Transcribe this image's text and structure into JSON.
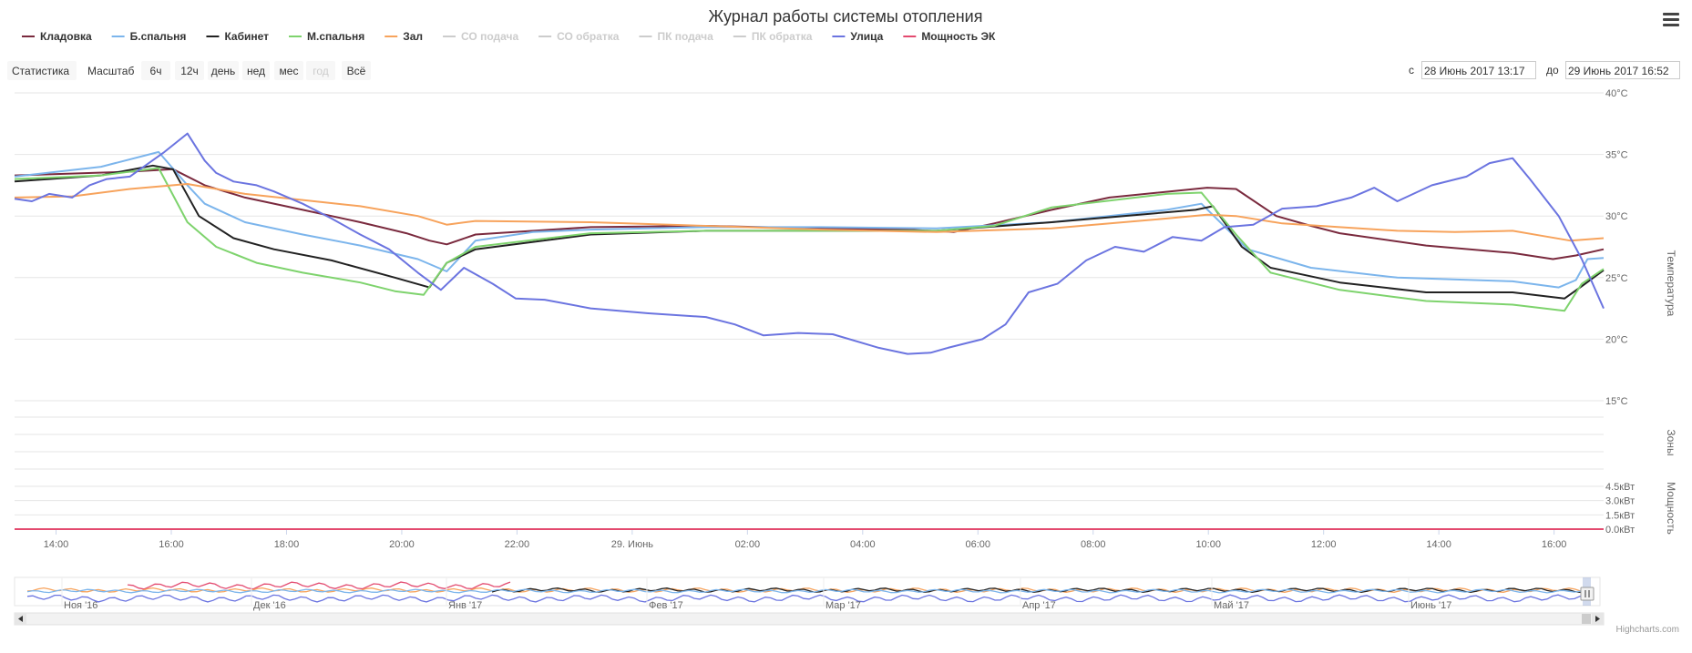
{
  "chart_data": {
    "type": "line",
    "title": "Журнал работы системы отопления",
    "legend_position": "top",
    "grid": true,
    "x": {
      "unit": "hours from 28 Июнь 2017 13:17",
      "range": [
        0,
        27.58
      ],
      "tick_values": [
        0.72,
        2.72,
        4.72,
        6.72,
        8.72,
        10.72,
        12.72,
        14.72,
        16.72,
        18.72,
        20.72,
        22.72,
        24.72,
        26.72
      ],
      "tick_labels": [
        "14:00",
        "16:00",
        "18:00",
        "20:00",
        "22:00",
        "29. Июнь",
        "02:00",
        "04:00",
        "06:00",
        "08:00",
        "10:00",
        "12:00",
        "14:00",
        "16:00"
      ]
    },
    "y_temp": {
      "title": "Температура",
      "range": [
        15,
        40
      ],
      "ticks": [
        15,
        20,
        25,
        30,
        35,
        40
      ],
      "tick_labels": [
        "15°C",
        "20°C",
        "25°C",
        "30°C",
        "35°C",
        "40°C"
      ]
    },
    "y_zones": {
      "title": "Зоны"
    },
    "y_power": {
      "title": "Мощность",
      "range": [
        0,
        4.5
      ],
      "ticks": [
        0,
        1.5,
        3.0,
        4.5
      ],
      "tick_labels": [
        "0.0кВт",
        "1.5кВт",
        "3.0кВт",
        "4.5кВт"
      ]
    },
    "series": [
      {
        "name": "Кладовка",
        "color": "#7a2a3e",
        "visible": true,
        "x": [
          0,
          2,
          2.75,
          3.3,
          4,
          5,
          6,
          6.8,
          7.2,
          7.5,
          8,
          10,
          12,
          14,
          15.5,
          16.3,
          17,
          18,
          19,
          20.7,
          21.2,
          21.9,
          22.5,
          23,
          24.5,
          26,
          26.7,
          27.1,
          27.58
        ],
        "y": [
          33.3,
          33.6,
          33.8,
          32.5,
          31.5,
          30.5,
          29.5,
          28.6,
          28,
          27.7,
          28.5,
          29.1,
          29.2,
          29,
          28.9,
          28.7,
          29.4,
          30.5,
          31.5,
          32.3,
          32.2,
          30,
          29.2,
          28.6,
          27.6,
          27,
          26.5,
          26.8,
          27.3
        ]
      },
      {
        "name": "Б.спальня",
        "color": "#7cb5ec",
        "visible": true,
        "x": [
          0,
          1.5,
          2.5,
          3,
          3.3,
          4,
          5,
          6,
          7,
          7.5,
          8,
          9,
          10,
          12,
          14,
          16,
          18,
          20,
          20.6,
          21.4,
          22.5,
          24,
          26,
          26.8,
          27.1,
          27.3,
          27.58
        ],
        "y": [
          33.2,
          34,
          35.2,
          32.5,
          31,
          29.5,
          28.5,
          27.6,
          26.5,
          25.5,
          28,
          28.7,
          28.9,
          29.1,
          29.1,
          29,
          29.5,
          30.5,
          31,
          27.3,
          25.8,
          25,
          24.7,
          24.2,
          24.8,
          26.5,
          26.6
        ]
      },
      {
        "name": "Кабинет",
        "color": "#222222",
        "visible": true,
        "x": [
          0,
          1.5,
          2.4,
          2.75,
          3.2,
          3.8,
          4.5,
          5.5,
          6.6,
          7.2,
          7.5,
          8,
          10,
          12,
          14,
          16,
          18,
          20.5,
          20.8,
          21.3,
          21.8,
          23,
          24.5,
          26,
          26.9,
          27.2,
          27.58
        ],
        "y": [
          32.8,
          33.3,
          34.1,
          33.8,
          30,
          28.2,
          27.3,
          26.4,
          25,
          24.2,
          26.2,
          27.3,
          28.5,
          28.8,
          28.8,
          28.8,
          29.5,
          30.5,
          30.8,
          27.5,
          25.8,
          24.6,
          23.8,
          23.8,
          23.3,
          24.3,
          25.6
        ]
      },
      {
        "name": "М.спальня",
        "color": "#7ed36d",
        "visible": true,
        "x": [
          0,
          1.5,
          2.5,
          3.0,
          3.5,
          4.2,
          5,
          6,
          6.6,
          7.1,
          7.5,
          8,
          10,
          12,
          14,
          16,
          17,
          18,
          20,
          20.6,
          21.2,
          21.8,
          23,
          24.5,
          26,
          26.9,
          27.2,
          27.58
        ],
        "y": [
          33,
          33.3,
          33.9,
          29.5,
          27.5,
          26.2,
          25.4,
          24.6,
          23.9,
          23.6,
          26.2,
          27.5,
          28.6,
          28.8,
          28.8,
          28.8,
          29.2,
          30.7,
          31.8,
          31.9,
          28.5,
          25.4,
          24,
          23.1,
          22.8,
          22.3,
          24.5,
          25.7
        ]
      },
      {
        "name": "Зал",
        "color": "#f7a35c",
        "visible": true,
        "x": [
          0,
          1,
          2,
          3,
          4,
          5,
          6,
          7,
          7.5,
          8,
          10,
          12,
          14,
          16,
          18,
          20,
          20.7,
          21.2,
          22,
          23,
          24,
          25,
          26,
          26.5,
          27,
          27.58
        ],
        "y": [
          31.5,
          31.6,
          32.2,
          32.6,
          31.8,
          31.3,
          30.8,
          30,
          29.3,
          29.6,
          29.5,
          29.2,
          28.9,
          28.7,
          29,
          29.8,
          30.1,
          30,
          29.4,
          29.1,
          28.8,
          28.7,
          28.8,
          28.4,
          28,
          28.2
        ]
      },
      {
        "name": "СО подача",
        "color": "#cccccc",
        "visible": false,
        "x": [],
        "y": []
      },
      {
        "name": "СО обратка",
        "color": "#cccccc",
        "visible": false,
        "x": [],
        "y": []
      },
      {
        "name": "ПК подача",
        "color": "#cccccc",
        "visible": false,
        "x": [],
        "y": []
      },
      {
        "name": "ПК обратка",
        "color": "#cccccc",
        "visible": false,
        "x": [],
        "y": []
      },
      {
        "name": "Улица",
        "color": "#6b74e0",
        "visible": true,
        "x": [
          0,
          0.3,
          0.6,
          1,
          1.3,
          1.6,
          2,
          2.3,
          2.6,
          3,
          3.3,
          3.5,
          3.8,
          4.2,
          4.5,
          5,
          5.5,
          6,
          6.5,
          7,
          7.4,
          7.8,
          8.3,
          8.7,
          9.2,
          10,
          11,
          12,
          12.5,
          13,
          13.6,
          14.2,
          15,
          15.5,
          15.9,
          16.2,
          16.8,
          17.2,
          17.6,
          18.1,
          18.6,
          19.1,
          19.6,
          20.1,
          20.6,
          21,
          21.5,
          22,
          22.6,
          23.2,
          23.6,
          24,
          24.6,
          25.2,
          25.6,
          26,
          26.3,
          26.8,
          27.2,
          27.58
        ],
        "y": [
          31.4,
          31.2,
          31.8,
          31.5,
          32.5,
          33,
          33.2,
          34.2,
          35.2,
          36.7,
          34.5,
          33.5,
          32.8,
          32.5,
          32,
          31,
          29.8,
          28.5,
          27.3,
          25.4,
          24,
          25.8,
          24.5,
          23.3,
          23.2,
          22.5,
          22.1,
          21.8,
          21.2,
          20.3,
          20.5,
          20.4,
          19.3,
          18.8,
          18.9,
          19.3,
          20,
          21.2,
          23.8,
          24.5,
          26.4,
          27.5,
          27.1,
          28.3,
          28,
          29.1,
          29.3,
          30.6,
          30.8,
          31.5,
          32.3,
          31.2,
          32.5,
          33.2,
          34.3,
          34.7,
          33,
          30,
          26.5,
          22.5
        ]
      },
      {
        "name": "Мощность ЭК",
        "color": "#e34a6f",
        "visible": true,
        "axis": "power",
        "x": [
          0,
          27.58
        ],
        "y": [
          0,
          0
        ]
      }
    ],
    "navigator": {
      "labels": [
        "Ноя '16",
        "Дек '16",
        "Янв '17",
        "Фев '17",
        "Мар '17",
        "Апр '17",
        "Май '17",
        "Июнь '17"
      ]
    }
  },
  "toolbar": {
    "stats_label": "Статистика",
    "scale_label": "Масштаб",
    "buttons": [
      "6ч",
      "12ч",
      "день",
      "нед",
      "мес",
      "год",
      "Всё"
    ],
    "from_label": "с",
    "to_label": "до",
    "from_value": "28 Июнь 2017 13:17",
    "to_value": "29 Июнь 2017 16:52"
  },
  "credits": "Highcharts.com",
  "menu_icon": "hamburger-menu-icon"
}
